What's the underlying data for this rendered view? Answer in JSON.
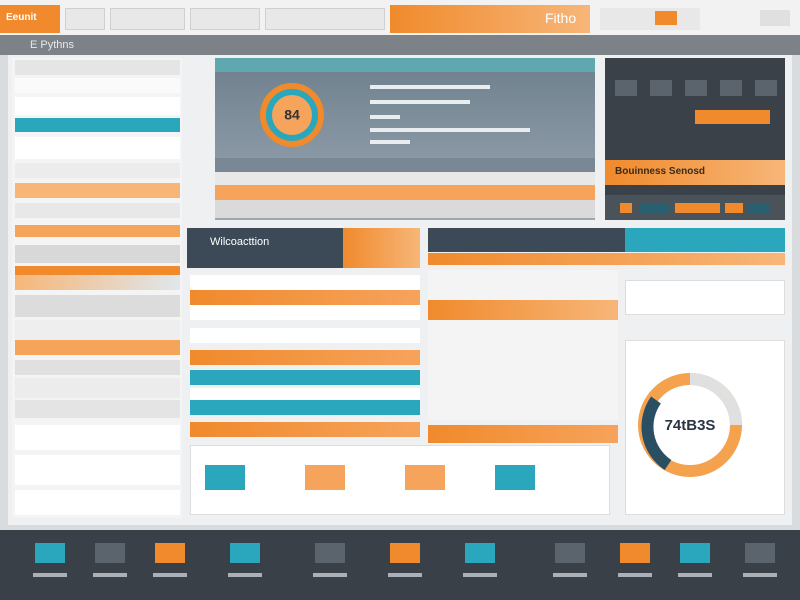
{
  "header": {
    "logo": "Eeunit",
    "brand": "Fitho"
  },
  "toolbar": {
    "title": "E Pythns"
  },
  "panels": {
    "overview": "Wilcoacttion",
    "business": "Bouinness Senosd",
    "gauge_top": "84",
    "gauge_bottom": "74tB3S"
  }
}
